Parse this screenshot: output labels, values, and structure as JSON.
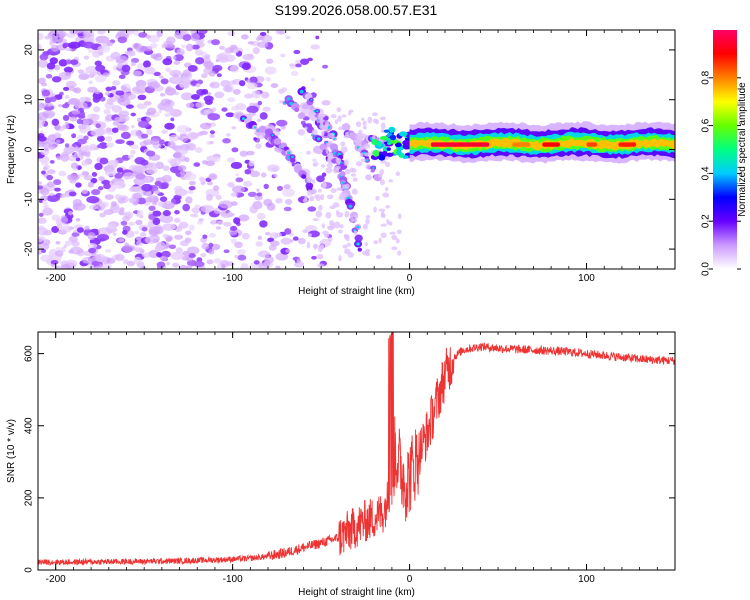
{
  "title": "S199.2026.058.00.57.E31",
  "chart_data": [
    {
      "type": "heatmap",
      "name": "spectrogram",
      "xlabel": "Height of straight line (km)",
      "ylabel": "Frequency (Hz)",
      "xlim": [
        -210,
        150
      ],
      "ylim": [
        -24,
        24
      ],
      "xticks": [
        -200,
        -100,
        0,
        100
      ],
      "yticks": [
        -20,
        -10,
        0,
        10,
        20
      ],
      "colorbar": {
        "label": "Normalized spectral amplitude",
        "range": [
          0,
          1
        ],
        "ticks": [
          0.0,
          0.2,
          0.4,
          0.6,
          0.8
        ],
        "colors": [
          "#ffffff",
          "#cc99ff",
          "#6600ff",
          "#0000ff",
          "#00ccff",
          "#00ff80",
          "#66ff00",
          "#ffff00",
          "#ff8000",
          "#ff0000",
          "#ff0066"
        ]
      },
      "features": [
        {
          "name": "noise field",
          "x_range": [
            -210,
            -45
          ],
          "freq_range": [
            -24,
            24
          ],
          "amplitude": 0.1
        },
        {
          "name": "descending streaks",
          "x_range": [
            -100,
            -15
          ],
          "freq_range": [
            -20,
            12
          ],
          "amplitude": 0.3
        },
        {
          "name": "carrier band",
          "x_range": [
            0,
            150
          ],
          "freq": 1.0,
          "amplitude": 0.9
        }
      ]
    },
    {
      "type": "line",
      "name": "snr",
      "xlabel": "Height of straight line (km)",
      "ylabel": "SNR (10 * v/v)",
      "xlim": [
        -210,
        150
      ],
      "ylim": [
        0,
        660
      ],
      "xticks": [
        -200,
        -100,
        0,
        100
      ],
      "yticks": [
        0,
        200,
        400,
        600
      ],
      "color": "#ee3333",
      "series": [
        {
          "name": "SNR",
          "x": [
            -210,
            -190,
            -170,
            -150,
            -130,
            -110,
            -90,
            -80,
            -70,
            -60,
            -50,
            -40,
            -35,
            -30,
            -25,
            -20,
            -15,
            -12,
            -10,
            -8,
            -5,
            -2,
            0,
            5,
            10,
            15,
            20,
            25,
            30,
            35,
            40,
            50,
            60,
            70,
            80,
            90,
            100,
            110,
            120,
            130,
            140,
            150
          ],
          "values": [
            22,
            22,
            23,
            24,
            25,
            28,
            32,
            38,
            48,
            62,
            75,
            90,
            105,
            120,
            135,
            145,
            160,
            200,
            270,
            330,
            280,
            240,
            260,
            320,
            380,
            460,
            540,
            590,
            610,
            615,
            620,
            615,
            612,
            610,
            608,
            605,
            600,
            595,
            590,
            585,
            582,
            580
          ]
        }
      ]
    }
  ]
}
